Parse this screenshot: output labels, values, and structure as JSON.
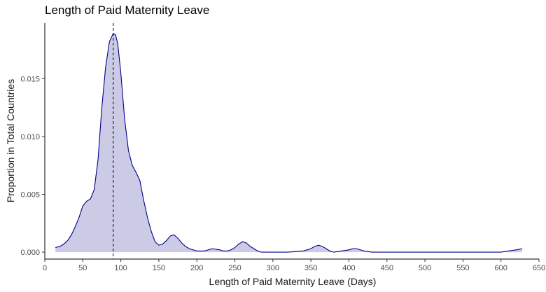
{
  "chart_data": {
    "type": "area",
    "title": "Length of Paid Maternity Leave",
    "xlabel": "Length of Paid Maternity Leave (Days)",
    "ylabel": "Proportion in Total Countries",
    "xlim": [
      0,
      650
    ],
    "ylim": [
      -0.0006,
      0.0198
    ],
    "x_ticks": [
      0,
      50,
      100,
      150,
      200,
      250,
      300,
      350,
      400,
      450,
      500,
      550,
      600,
      650
    ],
    "y_ticks": [
      0.0,
      0.005,
      0.01,
      0.015
    ],
    "y_tick_labels": [
      "0.000",
      "0.005",
      "0.010",
      "0.015"
    ],
    "grid": false,
    "fill_color": "#cbcbe6",
    "line_color": "#00008b",
    "reference_line": {
      "x": 90,
      "style": "dashed"
    },
    "x": [
      14,
      20,
      25,
      30,
      35,
      40,
      45,
      50,
      55,
      60,
      65,
      70,
      75,
      80,
      85,
      90,
      93,
      96,
      100,
      105,
      110,
      115,
      120,
      125,
      130,
      135,
      140,
      145,
      150,
      155,
      160,
      165,
      170,
      175,
      180,
      185,
      190,
      195,
      200,
      210,
      220,
      230,
      235,
      240,
      245,
      250,
      255,
      260,
      265,
      270,
      275,
      280,
      285,
      290,
      300,
      320,
      340,
      350,
      355,
      360,
      365,
      370,
      375,
      380,
      390,
      400,
      405,
      410,
      415,
      420,
      430,
      440,
      450,
      500,
      550,
      580,
      600,
      610,
      620,
      628
    ],
    "y": [
      0.0004,
      0.0005,
      0.0007,
      0.001,
      0.0015,
      0.0022,
      0.003,
      0.004,
      0.0044,
      0.0046,
      0.0054,
      0.008,
      0.0125,
      0.016,
      0.0182,
      0.0189,
      0.0188,
      0.018,
      0.0155,
      0.0115,
      0.0088,
      0.0075,
      0.0069,
      0.0062,
      0.0045,
      0.003,
      0.0018,
      0.0009,
      0.0006,
      0.0007,
      0.001,
      0.0014,
      0.0015,
      0.0012,
      0.0008,
      0.0005,
      0.0003,
      0.0002,
      0.0001,
      0.0001,
      0.0003,
      0.0002,
      0.0001,
      0.0001,
      0.0002,
      0.0004,
      0.0007,
      0.0009,
      0.0008,
      0.0005,
      0.0003,
      0.0001,
      0.0,
      0.0,
      0.0,
      0.0,
      0.0001,
      0.0003,
      0.0005,
      0.0006,
      0.0005,
      0.0003,
      0.0001,
      0.0,
      0.0001,
      0.0002,
      0.0003,
      0.0003,
      0.0002,
      0.0001,
      0.0,
      0.0,
      0.0,
      0.0,
      0.0,
      0.0,
      0.0,
      0.0001,
      0.0002,
      0.0003
    ]
  }
}
